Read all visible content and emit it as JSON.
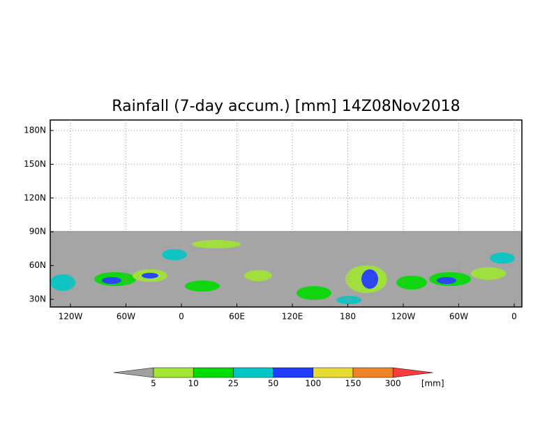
{
  "title": "Rainfall (7-day accum.) [mm] 14Z08Nov2018",
  "lat_labels": [
    "180N",
    "150N",
    "120N",
    "90N",
    "60N",
    "30N"
  ],
  "lon_labels": [
    "120W",
    "60W",
    "0",
    "60E",
    "120E",
    "180",
    "120W",
    "60W",
    "0"
  ],
  "colorbar": {
    "levels": [
      5,
      10,
      25,
      50,
      100,
      150,
      300
    ],
    "unit": "[mm]",
    "colors": [
      "#a0a0a0",
      "#a0e632",
      "#00dc00",
      "#00c8c8",
      "#1e3cff",
      "#e6dc32",
      "#f08228",
      "#fa3c3c"
    ]
  }
}
